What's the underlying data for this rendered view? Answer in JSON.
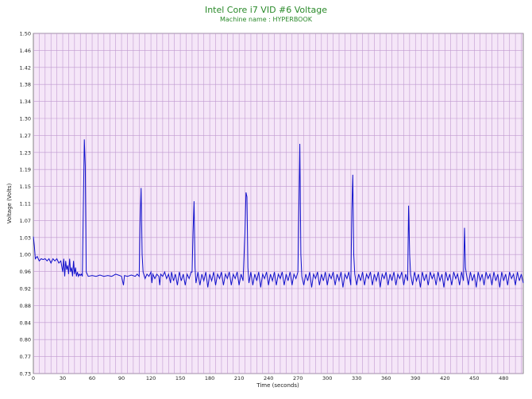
{
  "chart_data": {
    "type": "line",
    "title": "Intel Core i7 VID #6 Voltage",
    "subtitle": "Machine name : HYPERBOOK",
    "xlabel": "Time (seconds)",
    "ylabel": "Voltage (Volts)",
    "xlim": [
      0,
      500
    ],
    "ylim": [
      0.73,
      1.5
    ],
    "x_ticks": [
      0,
      30,
      60,
      90,
      120,
      150,
      180,
      210,
      240,
      270,
      300,
      330,
      360,
      390,
      420,
      450,
      480
    ],
    "y_ticks": [
      "0.73",
      "0.77",
      "0.80",
      "0.84",
      "0.88",
      "0.92",
      "0.96",
      "1.00",
      "1.03",
      "1.07",
      "1.11",
      "1.15",
      "1.19",
      "1.23",
      "1.27",
      "1.30",
      "1.34",
      "1.38",
      "1.42",
      "1.46",
      "1.50"
    ],
    "grid": true,
    "colors": {
      "plot_bg": "#f5e6f8",
      "grid": "#c09ad0",
      "line": "#1010cc",
      "title": "#2a8a2a"
    },
    "series": [
      {
        "values_xy": [
          [
            0,
            1.04
          ],
          [
            1,
            1.02
          ],
          [
            2,
            0.99
          ],
          [
            4,
            0.995
          ],
          [
            6,
            0.985
          ],
          [
            8,
            0.99
          ],
          [
            10,
            0.988
          ],
          [
            12,
            0.99
          ],
          [
            14,
            0.985
          ],
          [
            16,
            0.99
          ],
          [
            18,
            0.98
          ],
          [
            20,
            0.99
          ],
          [
            22,
            0.985
          ],
          [
            24,
            0.99
          ],
          [
            26,
            0.98
          ],
          [
            28,
            0.985
          ],
          [
            30,
            0.96
          ],
          [
            31,
            0.99
          ],
          [
            32,
            0.95
          ],
          [
            33,
            0.985
          ],
          [
            34,
            0.965
          ],
          [
            35,
            0.975
          ],
          [
            36,
            0.955
          ],
          [
            37,
            0.99
          ],
          [
            38,
            0.96
          ],
          [
            39,
            0.97
          ],
          [
            40,
            0.95
          ],
          [
            41,
            0.985
          ],
          [
            42,
            0.955
          ],
          [
            43,
            0.97
          ],
          [
            44,
            0.95
          ],
          [
            45,
            0.96
          ],
          [
            46,
            0.95
          ],
          [
            47,
            0.955
          ],
          [
            48,
            0.952
          ],
          [
            49,
            0.955
          ],
          [
            50,
            0.95
          ],
          [
            51,
            1.1
          ],
          [
            52,
            1.26
          ],
          [
            53,
            1.2
          ],
          [
            54,
            0.96
          ],
          [
            55,
            0.955
          ],
          [
            56,
            0.95
          ],
          [
            60,
            0.952
          ],
          [
            64,
            0.95
          ],
          [
            68,
            0.953
          ],
          [
            72,
            0.95
          ],
          [
            76,
            0.952
          ],
          [
            80,
            0.95
          ],
          [
            84,
            0.955
          ],
          [
            88,
            0.952
          ],
          [
            90,
            0.95
          ],
          [
            92,
            0.93
          ],
          [
            93,
            0.952
          ],
          [
            96,
            0.95
          ],
          [
            100,
            0.953
          ],
          [
            104,
            0.95
          ],
          [
            106,
            0.955
          ],
          [
            108,
            0.95
          ],
          [
            109,
            1.08
          ],
          [
            110,
            1.15
          ],
          [
            111,
            1.0
          ],
          [
            112,
            0.96
          ],
          [
            114,
            0.945
          ],
          [
            116,
            0.955
          ],
          [
            118,
            0.95
          ],
          [
            120,
            0.96
          ],
          [
            121,
            0.935
          ],
          [
            122,
            0.955
          ],
          [
            124,
            0.945
          ],
          [
            126,
            0.955
          ],
          [
            128,
            0.95
          ],
          [
            129,
            0.93
          ],
          [
            130,
            0.955
          ],
          [
            132,
            0.95
          ],
          [
            134,
            0.96
          ],
          [
            136,
            0.945
          ],
          [
            138,
            0.955
          ],
          [
            140,
            0.935
          ],
          [
            141,
            0.96
          ],
          [
            143,
            0.94
          ],
          [
            145,
            0.955
          ],
          [
            147,
            0.93
          ],
          [
            149,
            0.96
          ],
          [
            151,
            0.94
          ],
          [
            153,
            0.955
          ],
          [
            155,
            0.93
          ],
          [
            157,
            0.955
          ],
          [
            159,
            0.945
          ],
          [
            161,
            0.96
          ],
          [
            162,
            0.96
          ],
          [
            163,
            1.05
          ],
          [
            164,
            1.12
          ],
          [
            165,
            0.97
          ],
          [
            166,
            0.935
          ],
          [
            168,
            0.96
          ],
          [
            170,
            0.93
          ],
          [
            172,
            0.955
          ],
          [
            174,
            0.94
          ],
          [
            176,
            0.96
          ],
          [
            178,
            0.925
          ],
          [
            180,
            0.955
          ],
          [
            182,
            0.94
          ],
          [
            184,
            0.96
          ],
          [
            186,
            0.93
          ],
          [
            188,
            0.955
          ],
          [
            190,
            0.945
          ],
          [
            192,
            0.96
          ],
          [
            194,
            0.93
          ],
          [
            196,
            0.955
          ],
          [
            198,
            0.945
          ],
          [
            200,
            0.96
          ],
          [
            202,
            0.93
          ],
          [
            204,
            0.955
          ],
          [
            206,
            0.945
          ],
          [
            208,
            0.96
          ],
          [
            210,
            0.93
          ],
          [
            212,
            0.955
          ],
          [
            214,
            0.94
          ],
          [
            216,
            1.05
          ],
          [
            217,
            1.14
          ],
          [
            218,
            1.13
          ],
          [
            219,
            0.97
          ],
          [
            220,
            0.935
          ],
          [
            222,
            0.96
          ],
          [
            224,
            0.93
          ],
          [
            226,
            0.955
          ],
          [
            228,
            0.94
          ],
          [
            230,
            0.96
          ],
          [
            232,
            0.925
          ],
          [
            234,
            0.955
          ],
          [
            236,
            0.945
          ],
          [
            238,
            0.96
          ],
          [
            240,
            0.93
          ],
          [
            242,
            0.955
          ],
          [
            244,
            0.94
          ],
          [
            246,
            0.96
          ],
          [
            248,
            0.93
          ],
          [
            250,
            0.955
          ],
          [
            252,
            0.945
          ],
          [
            254,
            0.96
          ],
          [
            256,
            0.93
          ],
          [
            258,
            0.955
          ],
          [
            260,
            0.94
          ],
          [
            262,
            0.96
          ],
          [
            264,
            0.93
          ],
          [
            266,
            0.955
          ],
          [
            268,
            0.945
          ],
          [
            270,
            0.96
          ],
          [
            271,
            1.1
          ],
          [
            272,
            1.25
          ],
          [
            273,
            1.0
          ],
          [
            274,
            0.95
          ],
          [
            276,
            0.93
          ],
          [
            278,
            0.955
          ],
          [
            280,
            0.94
          ],
          [
            282,
            0.96
          ],
          [
            284,
            0.925
          ],
          [
            286,
            0.955
          ],
          [
            288,
            0.945
          ],
          [
            290,
            0.96
          ],
          [
            292,
            0.93
          ],
          [
            294,
            0.955
          ],
          [
            296,
            0.94
          ],
          [
            298,
            0.96
          ],
          [
            300,
            0.93
          ],
          [
            302,
            0.955
          ],
          [
            304,
            0.945
          ],
          [
            306,
            0.96
          ],
          [
            308,
            0.93
          ],
          [
            310,
            0.955
          ],
          [
            312,
            0.94
          ],
          [
            314,
            0.96
          ],
          [
            316,
            0.925
          ],
          [
            318,
            0.955
          ],
          [
            320,
            0.945
          ],
          [
            322,
            0.96
          ],
          [
            324,
            0.93
          ],
          [
            325,
            1.1
          ],
          [
            326,
            1.18
          ],
          [
            327,
            1.0
          ],
          [
            328,
            0.955
          ],
          [
            330,
            0.93
          ],
          [
            332,
            0.955
          ],
          [
            334,
            0.94
          ],
          [
            336,
            0.96
          ],
          [
            338,
            0.93
          ],
          [
            340,
            0.955
          ],
          [
            342,
            0.945
          ],
          [
            344,
            0.96
          ],
          [
            346,
            0.93
          ],
          [
            348,
            0.955
          ],
          [
            350,
            0.94
          ],
          [
            352,
            0.96
          ],
          [
            354,
            0.925
          ],
          [
            356,
            0.955
          ],
          [
            358,
            0.945
          ],
          [
            360,
            0.96
          ],
          [
            362,
            0.93
          ],
          [
            364,
            0.955
          ],
          [
            366,
            0.94
          ],
          [
            368,
            0.96
          ],
          [
            370,
            0.93
          ],
          [
            372,
            0.955
          ],
          [
            374,
            0.945
          ],
          [
            376,
            0.96
          ],
          [
            378,
            0.93
          ],
          [
            380,
            0.955
          ],
          [
            382,
            0.94
          ],
          [
            383,
            1.11
          ],
          [
            384,
            1.0
          ],
          [
            385,
            0.955
          ],
          [
            387,
            0.93
          ],
          [
            389,
            0.96
          ],
          [
            391,
            0.94
          ],
          [
            393,
            0.955
          ],
          [
            395,
            0.925
          ],
          [
            397,
            0.96
          ],
          [
            399,
            0.94
          ],
          [
            401,
            0.955
          ],
          [
            403,
            0.93
          ],
          [
            405,
            0.96
          ],
          [
            407,
            0.945
          ],
          [
            409,
            0.955
          ],
          [
            411,
            0.93
          ],
          [
            413,
            0.96
          ],
          [
            415,
            0.94
          ],
          [
            417,
            0.955
          ],
          [
            419,
            0.925
          ],
          [
            421,
            0.96
          ],
          [
            423,
            0.94
          ],
          [
            425,
            0.955
          ],
          [
            427,
            0.93
          ],
          [
            429,
            0.96
          ],
          [
            431,
            0.945
          ],
          [
            433,
            0.955
          ],
          [
            435,
            0.93
          ],
          [
            437,
            0.96
          ],
          [
            439,
            0.94
          ],
          [
            440,
            1.06
          ],
          [
            441,
            0.97
          ],
          [
            442,
            0.955
          ],
          [
            444,
            0.93
          ],
          [
            446,
            0.96
          ],
          [
            448,
            0.94
          ],
          [
            450,
            0.955
          ],
          [
            452,
            0.925
          ],
          [
            454,
            0.96
          ],
          [
            456,
            0.94
          ],
          [
            458,
            0.955
          ],
          [
            460,
            0.93
          ],
          [
            462,
            0.96
          ],
          [
            464,
            0.945
          ],
          [
            466,
            0.955
          ],
          [
            468,
            0.93
          ],
          [
            470,
            0.96
          ],
          [
            472,
            0.94
          ],
          [
            474,
            0.955
          ],
          [
            476,
            0.925
          ],
          [
            478,
            0.96
          ],
          [
            480,
            0.94
          ],
          [
            482,
            0.955
          ],
          [
            484,
            0.93
          ],
          [
            486,
            0.96
          ],
          [
            488,
            0.945
          ],
          [
            490,
            0.955
          ],
          [
            492,
            0.93
          ],
          [
            494,
            0.96
          ],
          [
            496,
            0.94
          ],
          [
            498,
            0.955
          ],
          [
            500,
            0.935
          ]
        ]
      }
    ]
  }
}
